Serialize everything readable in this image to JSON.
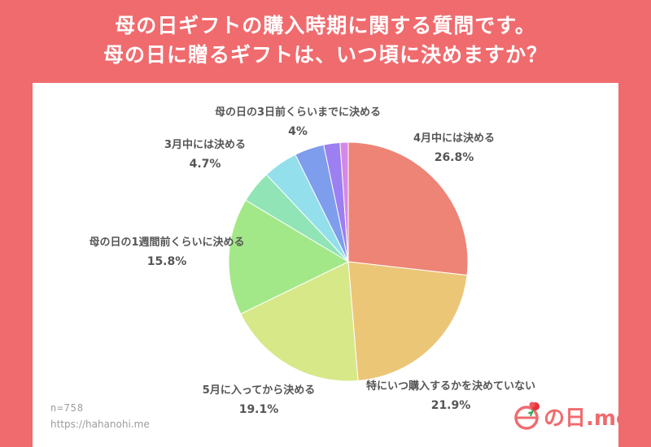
{
  "header": {
    "line1": "母の日ギフトの購入時期に関する質問です。",
    "line2": "母の日に贈るギフトは、いつ頃に決めますか？"
  },
  "colors": {
    "frame": "#f06b6e",
    "label_text": "#555555",
    "footer_text": "#9c9c9c"
  },
  "chart_data": {
    "type": "pie",
    "title": "母の日ギフトの購入時期に関する質問です。 母の日に贈るギフトは、いつ頃に決めますか？",
    "start": "12 o'clock, clockwise",
    "slices": [
      {
        "label": "4月中には決める",
        "value": 26.8,
        "value_text": "26.8%",
        "color": "#ed8475"
      },
      {
        "label": "特にいつ購入するかを決めていない",
        "value": 21.9,
        "value_text": "21.9%",
        "color": "#ecc677"
      },
      {
        "label": "5月に入ってから決める",
        "value": 19.1,
        "value_text": "19.1%",
        "color": "#d7e889"
      },
      {
        "label": "母の日の1週間前くらいに決める",
        "value": 15.8,
        "value_text": "15.8%",
        "color": "#a3e888"
      },
      {
        "label": "",
        "value": 4.4,
        "value_text": "",
        "color": "#91e4b6"
      },
      {
        "label": "3月中には決める",
        "value": 4.7,
        "value_text": "4.7%",
        "color": "#93dfec"
      },
      {
        "label": "母の日の3日前くらいまでに決める",
        "value": 4.0,
        "value_text": "4%",
        "color": "#7f9ded"
      },
      {
        "label": "",
        "value": 2.2,
        "value_text": "",
        "color": "#9c7ff0"
      },
      {
        "label": "",
        "value": 1.1,
        "value_text": "",
        "color": "#d489e8"
      }
    ]
  },
  "footer": {
    "sample_size": "n=758",
    "url": "https://hahanohi.me"
  },
  "logo": {
    "text": "の日.me",
    "mark_char": "母"
  }
}
